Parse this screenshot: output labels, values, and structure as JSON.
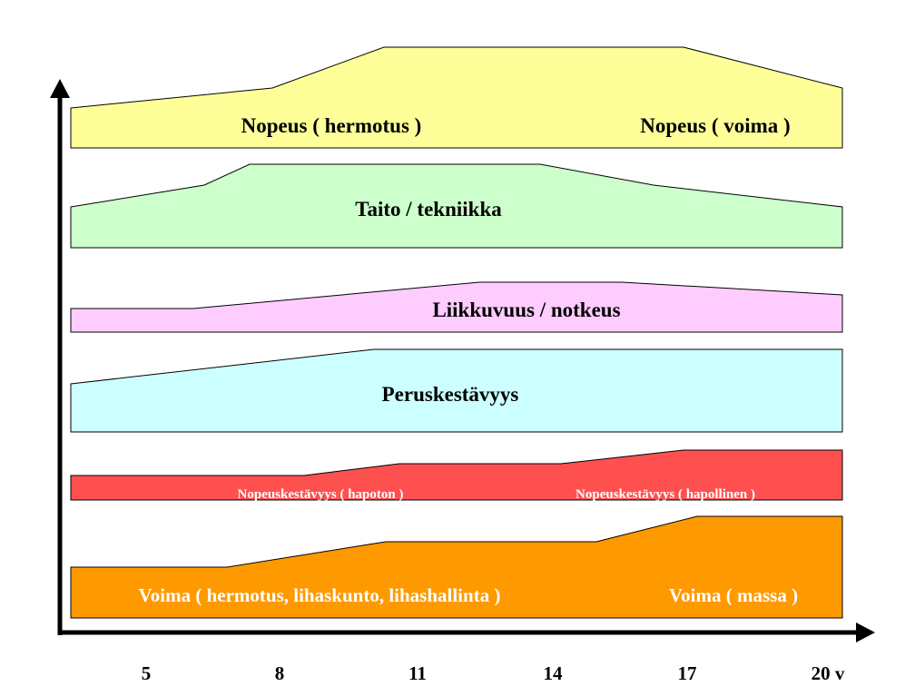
{
  "bands": [
    {
      "id": "nopeus",
      "color": "#ffff99",
      "labels": [
        "Nopeus ( hermotus )",
        "Nopeus ( voima )"
      ]
    },
    {
      "id": "taito",
      "color": "#ccffcc",
      "labels": [
        "Taito / tekniikka"
      ]
    },
    {
      "id": "liikkuvuus",
      "color": "#ffccff",
      "labels": [
        "Liikkuvuus / notkeus"
      ]
    },
    {
      "id": "peruskestavyys",
      "color": "#ccffff",
      "labels": [
        "Peruskestävyys"
      ]
    },
    {
      "id": "nopeuskestavyys",
      "color": "#ff5050",
      "labels": [
        "Nopeuskestävyys ( hapoton )",
        "Nopeuskestävyys ( hapollinen )"
      ]
    },
    {
      "id": "voima",
      "color": "#ff9900",
      "labels": [
        "Voima ( hermotus, lihaskunto, lihashallinta )",
        "Voima ( massa )"
      ]
    }
  ],
  "x_axis": {
    "ticks": [
      "5",
      "8",
      "11",
      "14",
      "17",
      "20 v"
    ]
  }
}
